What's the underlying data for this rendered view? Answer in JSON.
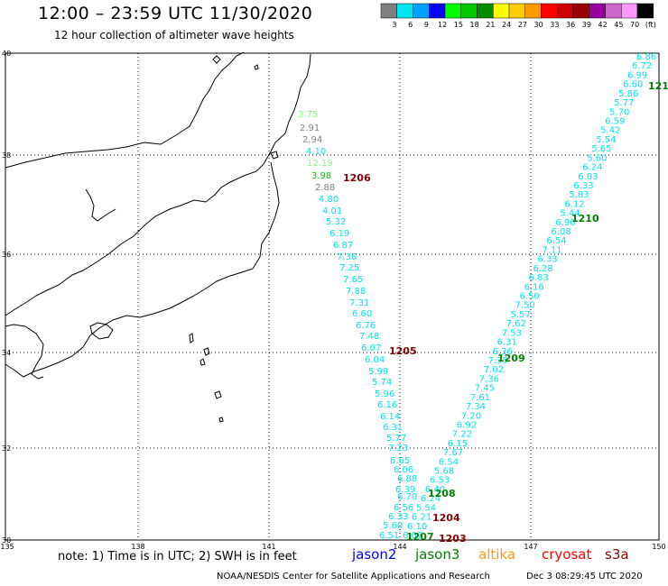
{
  "header": {
    "title": "12:00 – 23:59 UTC 11/30/2020",
    "subtitle": "12 hour collection of altimeter wave heights"
  },
  "colorbar": {
    "labels": [
      "3",
      "6",
      "9",
      "12",
      "15",
      "18",
      "21",
      "24",
      "27",
      "30",
      "33",
      "36",
      "39",
      "42",
      "45",
      "70",
      "(ft)"
    ],
    "colors": [
      "#808080",
      "#00e5ee",
      "#00a0ff",
      "#0000ff",
      "#00ff00",
      "#00c800",
      "#008c00",
      "#ffff00",
      "#ffcc00",
      "#ff9900",
      "#ff0000",
      "#cc0000",
      "#990000",
      "#990099",
      "#cc66cc",
      "#ff99ff",
      "#000000"
    ]
  },
  "axes": {
    "lat_labels": [
      "40",
      "38",
      "36",
      "34",
      "32",
      "30"
    ],
    "lon_labels": [
      "135",
      "138",
      "141",
      "144",
      "147",
      "150"
    ]
  },
  "tracks": {
    "west": {
      "values": [
        "3.75",
        "2.91",
        "2.94",
        "4.10",
        "12.19",
        "3.98",
        "2.88",
        "4.80",
        "4.01",
        "5.32",
        "6.19",
        "6.87",
        "7.36",
        "7.25",
        "7.65",
        "7.88",
        "7.31",
        "6.60",
        "6.76",
        "7.48",
        "6.07",
        "6.04",
        "5.99",
        "5.74",
        "5.96",
        "6.16",
        "6.14",
        "6.31",
        "5.77",
        "7.23",
        "6.65",
        "6.06",
        "6.88",
        "6.39",
        "6.70",
        "6.56",
        "6.33",
        "5.60",
        "6.51"
      ],
      "colors": [
        "#80ff80",
        "#808080",
        "#808080",
        "#00e5ee",
        "#80ff80",
        "#00c800",
        "#808080",
        "#00e5ee",
        "#00e5ee",
        "#00e5ee",
        "#00e5ee",
        "#00e5ee",
        "#00e5ee",
        "#00e5ee",
        "#00e5ee",
        "#00e5ee",
        "#00e5ee",
        "#00e5ee",
        "#00e5ee",
        "#00e5ee",
        "#00e5ee",
        "#00e5ee",
        "#00e5ee",
        "#00e5ee",
        "#00e5ee",
        "#00e5ee",
        "#00e5ee",
        "#00e5ee",
        "#00e5ee",
        "#00e5ee",
        "#00e5ee",
        "#00e5ee",
        "#00e5ee",
        "#00e5ee",
        "#00e5ee",
        "#00e5ee",
        "#00e5ee",
        "#00e5ee",
        "#00e5ee"
      ]
    },
    "east": {
      "values": [
        "6.86",
        "6.72",
        "6.99",
        "6.60",
        "5.86",
        "5.77",
        "5.70",
        "6.59",
        "5.42",
        "5.54",
        "5.65",
        "5.60",
        "6.24",
        "6.03",
        "6.33",
        "5.83",
        "6.12",
        "5.44",
        "6.90",
        "6.08",
        "6.54",
        "7.11",
        "6.33",
        "6.28",
        "6.83",
        "6.16",
        "6.50",
        "7.50",
        "5.57",
        "7.62",
        "7.53",
        "6.31",
        "6.36",
        "7.35",
        "7.02",
        "7.36",
        "7.45",
        "7.61",
        "7.34",
        "7.20",
        "6.92",
        "7.22",
        "6.15",
        "7.67",
        "6.54",
        "5.68",
        "6.53",
        "6.40",
        "6.24",
        "5.54",
        "6.21",
        "6.10",
        "6.07"
      ]
    },
    "passes": [
      {
        "label": "1206",
        "color": "#8b0000"
      },
      {
        "label": "1205",
        "color": "#8b0000"
      },
      {
        "label": "1210",
        "color": "#008000"
      },
      {
        "label": "1209",
        "color": "#008000"
      },
      {
        "label": "1208",
        "color": "#008000"
      },
      {
        "label": "1204",
        "color": "#8b0000"
      },
      {
        "label": "1207",
        "color": "#008000"
      },
      {
        "label": "1203",
        "color": "#8b0000"
      },
      {
        "label": "121",
        "color": "#008000"
      }
    ]
  },
  "footer": {
    "note": "note:  1) Time is in UTC;  2) SWH is in feet",
    "missions": [
      {
        "name": "jason2",
        "color": "#0000ff"
      },
      {
        "name": "jason3",
        "color": "#008000"
      },
      {
        "name": "altika",
        "color": "#ff9900"
      },
      {
        "name": "cryosat",
        "color": "#ff0000"
      },
      {
        "name": "s3a",
        "color": "#8b0000"
      }
    ],
    "credit": "NOAA/NESDIS Center for Satellite Applications and Research",
    "date": "Dec  3 08:29:45 UTC 2020"
  }
}
